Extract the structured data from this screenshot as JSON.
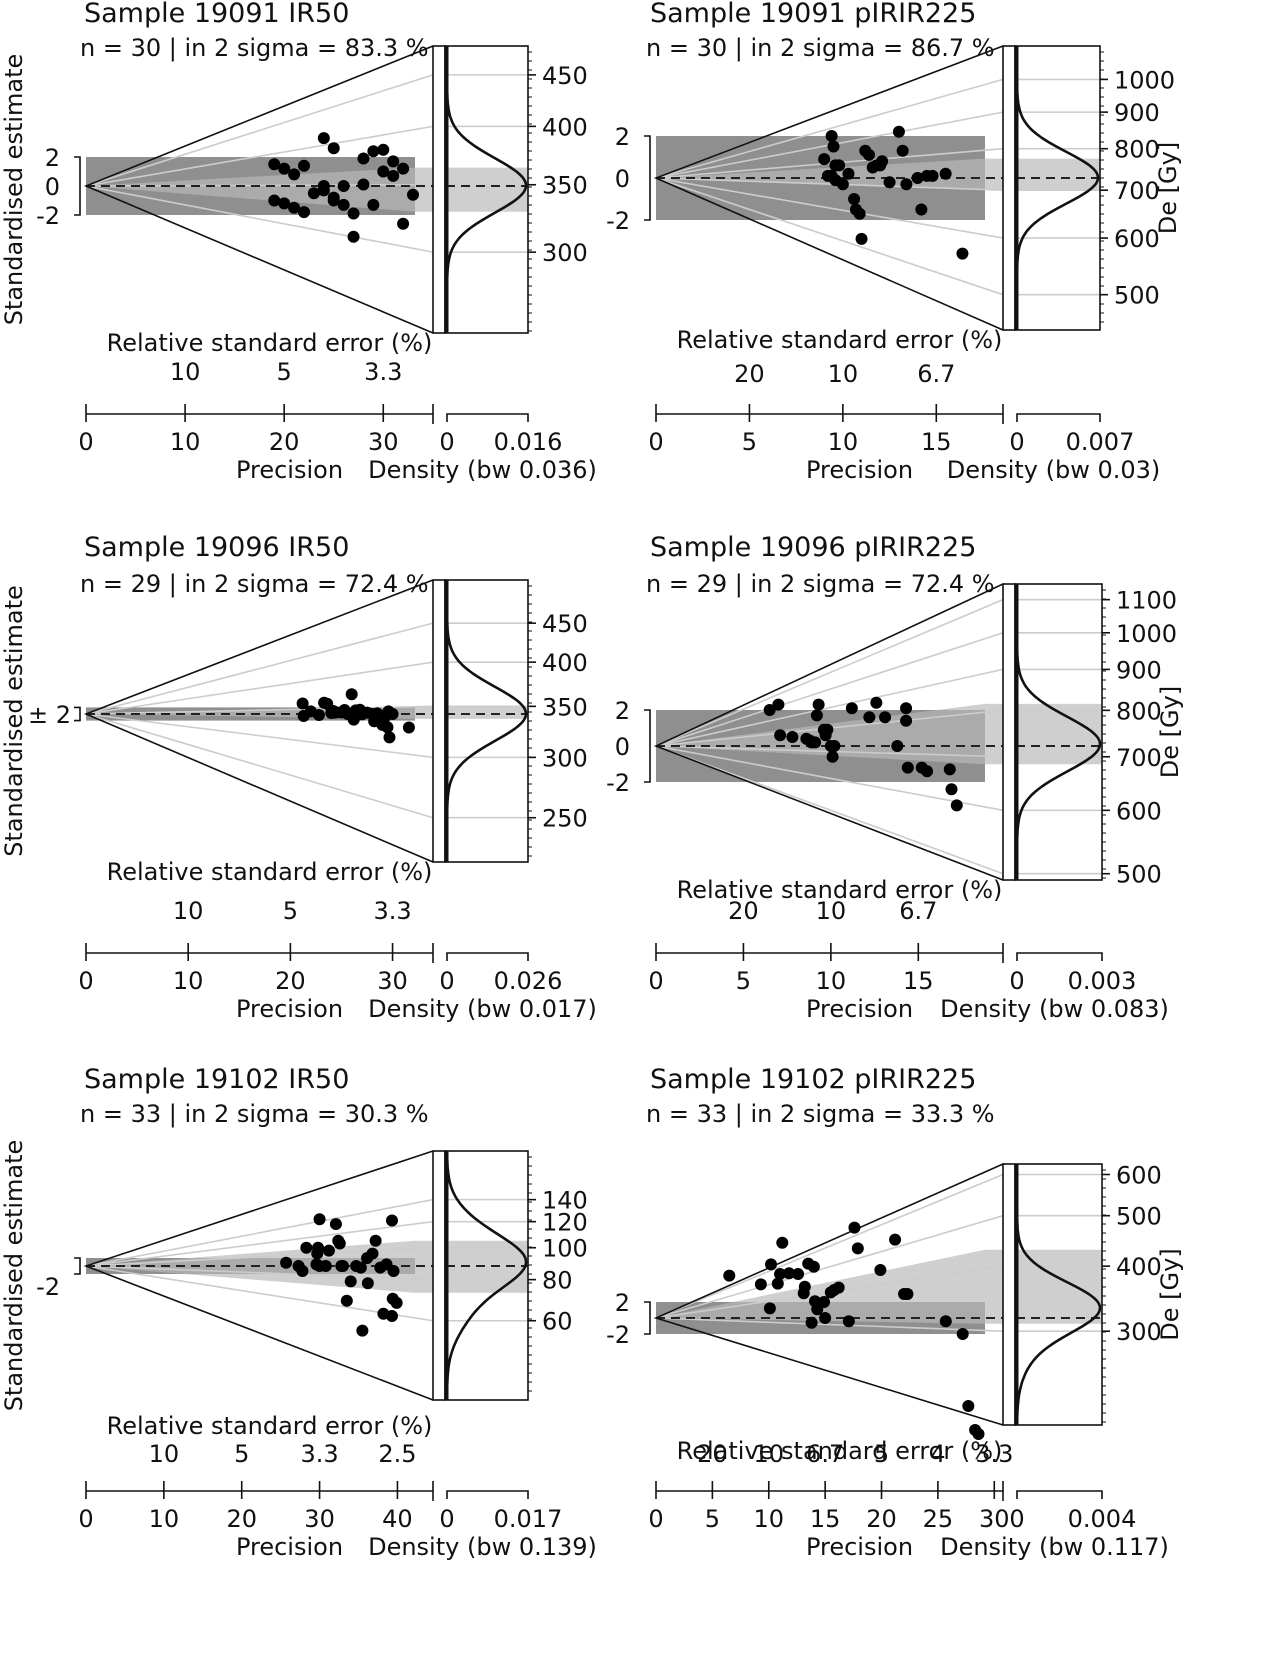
{
  "figure": {
    "description": "Six abanico plots of equivalent dose (De) distributions",
    "background": "#ffffff",
    "colors": {
      "polygon_dark": "#8f8f8f",
      "polygon_light": "#cfcfcf",
      "grid_lines": "#cccccc",
      "points": "#000000",
      "lines": "#111111"
    }
  },
  "chart_data": [
    {
      "type": "scatter",
      "subtype": "abanico",
      "title": "Sample 19091 IR50",
      "subtitle": "n = 30 | in 2 sigma = 83.3 %",
      "n": 30,
      "in_2_sigma_pct": 83.3,
      "ylabel": "Standardised estimate",
      "y_ticks": [
        "2",
        "0",
        "-2"
      ],
      "y_bracket_label": "",
      "rse_axis_label": "Relative standard error (%)",
      "rse_ticks": [
        {
          "label": "10",
          "precision": 10
        },
        {
          "label": "5",
          "precision": 20
        },
        {
          "label": "3.3",
          "precision": 30
        }
      ],
      "xlabel": "Precision",
      "xlim": [
        0,
        33
      ],
      "x_ticks": [
        0,
        10,
        20,
        30
      ],
      "density_label": "Density (bw 0.036)",
      "density_ticks": [
        "0",
        "0.016"
      ],
      "z_label": "",
      "z_ticks": [
        300,
        350,
        400,
        450
      ],
      "z_range": [
        255,
        470
      ],
      "central_value": 349,
      "polygon_band": [
        329,
        364
      ],
      "x": [
        19,
        20,
        21,
        22,
        23,
        24,
        25,
        26,
        19,
        20,
        21,
        22,
        24,
        25,
        26,
        27,
        28,
        29,
        30,
        31,
        32,
        33,
        24,
        25,
        27,
        28,
        29,
        30,
        31,
        32
      ],
      "y": [
        1.5,
        1.2,
        0.8,
        1.4,
        -0.5,
        0.0,
        -0.8,
        0.0,
        -1.0,
        -1.2,
        -1.5,
        -1.8,
        -0.3,
        -1.0,
        -1.3,
        -1.9,
        0.1,
        -1.3,
        2.5,
        1.7,
        1.2,
        -0.6,
        3.3,
        2.6,
        -3.5,
        1.9,
        2.4,
        1.0,
        0.7,
        -2.6
      ]
    },
    {
      "type": "scatter",
      "subtype": "abanico",
      "title": "Sample 19091 pIRIR225",
      "subtitle": "n = 30 | in 2 sigma = 86.7 %",
      "n": 30,
      "in_2_sigma_pct": 86.7,
      "ylabel": "",
      "y_ticks": [
        "2",
        "0",
        "-2"
      ],
      "y_bracket_label": "",
      "rse_axis_label": "Relative standard error (%)",
      "rse_ticks": [
        {
          "label": "20",
          "precision": 5
        },
        {
          "label": "10",
          "precision": 10
        },
        {
          "label": "6.7",
          "precision": 15
        }
      ],
      "xlabel": "Precision",
      "xlim": [
        0,
        17.5
      ],
      "x_ticks": [
        0,
        5,
        10,
        15
      ],
      "density_label": "Density (bw 0.03)",
      "density_ticks": [
        "0",
        "0.007"
      ],
      "z_label": "De [Gy]",
      "z_ticks": [
        500,
        600,
        700,
        800,
        900,
        1000
      ],
      "z_range": [
        480,
        1060
      ],
      "central_value": 728,
      "polygon_band": [
        700,
        775
      ],
      "x": [
        9.0,
        9.2,
        9.4,
        9.4,
        9.5,
        9.6,
        9.6,
        9.8,
        10.0,
        10.3,
        10.6,
        10.7,
        10.9,
        11.0,
        11.2,
        11.4,
        11.6,
        11.8,
        12.0,
        12.1,
        12.5,
        13.0,
        13.2,
        13.4,
        14.0,
        14.2,
        14.5,
        14.8,
        15.5,
        16.4
      ],
      "y": [
        0.9,
        0.1,
        0.1,
        2.0,
        1.5,
        0.6,
        -0.1,
        0.6,
        -0.3,
        0.2,
        -1.0,
        -1.5,
        -1.7,
        -2.9,
        1.3,
        1.1,
        0.5,
        0.6,
        0.6,
        0.8,
        -0.2,
        2.2,
        1.3,
        -0.3,
        0.0,
        -1.5,
        0.1,
        0.1,
        0.2,
        -3.6
      ]
    },
    {
      "type": "scatter",
      "subtype": "abanico",
      "title": "Sample 19096 IR50",
      "subtitle": "n = 29 | in 2 sigma = 72.4 %",
      "n": 29,
      "in_2_sigma_pct": 72.4,
      "ylabel": "Standardised estimate",
      "y_ticks": [],
      "y_bracket_label": "± 2",
      "rse_axis_label": "Relative standard error (%)",
      "rse_ticks": [
        {
          "label": "10",
          "precision": 10
        },
        {
          "label": "5",
          "precision": 20
        },
        {
          "label": "3.3",
          "precision": 30
        }
      ],
      "xlabel": "Precision",
      "xlim": [
        0,
        32
      ],
      "x_ticks": [
        0,
        10,
        20,
        30
      ],
      "density_label": "Density (bw 0.017)",
      "density_ticks": [
        "0",
        "0.026"
      ],
      "z_label": "",
      "z_ticks": [
        250,
        300,
        350,
        400,
        450
      ],
      "z_range": [
        230,
        480
      ],
      "central_value": 342,
      "polygon_band": [
        337,
        350
      ],
      "x": [
        21.2,
        21.3,
        22.0,
        22.8,
        23.3,
        23.6,
        24.0,
        24.2,
        24.3,
        24.5,
        25.0,
        25.3,
        25.6,
        26.2,
        26.4,
        26.8,
        27.0,
        27.5,
        28.0,
        28.2,
        28.5,
        29.0,
        29.5,
        29.6,
        30.0,
        29.2,
        31.6,
        26.0,
        29.7
      ],
      "y": [
        3.2,
        -0.6,
        0.8,
        -0.3,
        3.4,
        3.1,
        0.3,
        0.9,
        0.4,
        0.5,
        0.5,
        1.2,
        0.0,
        -1.7,
        1.1,
        1.3,
        -0.1,
        0.4,
        0.0,
        -2.2,
        0.2,
        -3.3,
        -4.0,
        0.8,
        0.0,
        -1.2,
        -4.1,
        6.0,
        -7.1
      ]
    },
    {
      "type": "scatter",
      "subtype": "abanico",
      "title": "Sample 19096 pIRIR225",
      "subtitle": "n = 29 | in 2 sigma = 72.4 %",
      "n": 29,
      "in_2_sigma_pct": 72.4,
      "ylabel": "",
      "y_ticks": [
        "2",
        "0",
        "-2"
      ],
      "y_bracket_label": "",
      "rse_axis_label": "Relative standard error (%)",
      "rse_ticks": [
        {
          "label": "20",
          "precision": 5
        },
        {
          "label": "10",
          "precision": 10
        },
        {
          "label": "6.7",
          "precision": 15
        }
      ],
      "xlabel": "Precision",
      "xlim": [
        0,
        18.7
      ],
      "x_ticks": [
        0,
        5,
        10,
        15
      ],
      "density_label": "Density (bw 0.083)",
      "density_ticks": [
        "0",
        "0.003"
      ],
      "z_label": "De [Gy]",
      "z_ticks": [
        500,
        600,
        700,
        800,
        900,
        1000,
        1100
      ],
      "z_range": [
        500,
        1140
      ],
      "central_value": 722,
      "polygon_band": [
        685,
        815
      ],
      "x": [
        6.5,
        7.0,
        7.1,
        7.8,
        8.6,
        8.8,
        8.9,
        9.1,
        9.2,
        9.3,
        9.6,
        9.7,
        9.8,
        10.0,
        10.1,
        10.2,
        11.2,
        12.2,
        12.6,
        13.1,
        13.8,
        14.3,
        14.3,
        14.4,
        15.2,
        15.5,
        16.8,
        16.9,
        17.2
      ],
      "y": [
        2.0,
        2.3,
        0.6,
        0.5,
        0.4,
        0.3,
        0.2,
        0.2,
        1.7,
        2.3,
        0.9,
        0.6,
        0.9,
        0.0,
        -0.6,
        0.0,
        2.1,
        1.6,
        2.4,
        1.6,
        0.0,
        2.1,
        1.4,
        -1.2,
        -1.2,
        -1.4,
        -1.3,
        -2.4,
        -3.3
      ]
    },
    {
      "type": "scatter",
      "subtype": "abanico",
      "title": "Sample 19102 IR50",
      "subtitle": "n = 33 | in 2 sigma = 30.3 %",
      "n": 33,
      "in_2_sigma_pct": 30.3,
      "ylabel": "Standardised estimate",
      "y_ticks": [
        "-2"
      ],
      "y_bracket_label": "",
      "rse_axis_label": "Relative standard error (%)",
      "rse_ticks": [
        {
          "label": "10",
          "precision": 10
        },
        {
          "label": "5",
          "precision": 20
        },
        {
          "label": "3.3",
          "precision": 30
        },
        {
          "label": "2.5",
          "precision": 40
        }
      ],
      "xlabel": "Precision",
      "xlim": [
        0,
        42
      ],
      "x_ticks": [
        0,
        10,
        20,
        30,
        40
      ],
      "density_label": "Density (bw 0.139)",
      "density_ticks": [
        "0",
        "0.017"
      ],
      "z_label": "",
      "z_ticks": [
        60,
        80,
        100,
        120,
        140
      ],
      "z_range": [
        40,
        152
      ],
      "central_value": 88,
      "polygon_band": [
        73,
        105
      ],
      "x": [
        25.7,
        27.3,
        27.8,
        28.3,
        29.6,
        29.7,
        29.8,
        30.0,
        30.0,
        30.8,
        31.2,
        32.1,
        32.4,
        32.6,
        32.8,
        33.0,
        33.5,
        34.0,
        34.7,
        35.3,
        35.5,
        36.1,
        36.2,
        36.8,
        37.2,
        37.8,
        38.2,
        38.6,
        39.3,
        39.5,
        39.3,
        39.9,
        39.4
      ],
      "y": [
        1.5,
        0.8,
        -0.5,
        5.5,
        1.2,
        3.8,
        5.5,
        0.5,
        9.0,
        0.5,
        4.6,
        9.0,
        7.4,
        6.3,
        1.4,
        0.0,
        -7.0,
        -3.5,
        1.6,
        0.0,
        -9.0,
        2.9,
        -3.2,
        4.2,
        5.8,
        0.8,
        -5.5,
        1.7,
        9.8,
        -1.3,
        -9.3,
        -7.2,
        -8.0
      ],
      "z_values": [
        90,
        88,
        85,
        100,
        89,
        96,
        100,
        88,
        122,
        88,
        98,
        118,
        105,
        103,
        88,
        88,
        69,
        79,
        88,
        87,
        56,
        93,
        78,
        96,
        105,
        87,
        63,
        89,
        121,
        85,
        62,
        68,
        70
      ]
    },
    {
      "type": "scatter",
      "subtype": "abanico",
      "title": "Sample 19102 pIRIR225",
      "subtitle": "n = 33 | in 2 sigma = 33.3 %",
      "n": 33,
      "in_2_sigma_pct": 33.3,
      "ylabel": "",
      "y_ticks": [
        "2",
        "-2"
      ],
      "y_bracket_label": "",
      "rse_axis_label": "Relative standard error (%)",
      "rse_ticks": [
        {
          "label": "20",
          "precision": 5
        },
        {
          "label": "10",
          "precision": 10
        },
        {
          "label": "6.7",
          "precision": 15
        },
        {
          "label": "5",
          "precision": 20
        },
        {
          "label": "4",
          "precision": 25
        },
        {
          "label": "3.3",
          "precision": 30
        }
      ],
      "xlabel": "Precision",
      "xlim": [
        0,
        29
      ],
      "x_ticks": [
        0,
        5,
        10,
        15,
        20,
        25,
        30
      ],
      "density_label": "Density (bw 0.117)",
      "density_ticks": [
        "0",
        "0.004"
      ],
      "z_label": "De [Gy]",
      "z_ticks": [
        300,
        400,
        500,
        600
      ],
      "z_range": [
        210,
        620
      ],
      "central_value": 318,
      "polygon_band": [
        310,
        430
      ],
      "x": [
        6.5,
        9.3,
        10.1,
        10.2,
        10.8,
        11.0,
        11.2,
        11.8,
        12.6,
        13.1,
        13.2,
        13.5,
        13.8,
        14.0,
        14.1,
        14.3,
        14.9,
        15.0,
        15.5,
        15.8,
        16.2,
        17.1,
        17.6,
        17.9,
        19.9,
        21.2,
        22.0,
        22.3,
        25.7,
        27.2,
        27.7,
        28.3,
        28.6
      ],
      "y": [
        5.3,
        4.2,
        1.2,
        6.7,
        4.3,
        5.5,
        9.4,
        5.6,
        5.5,
        3.1,
        3.9,
        6.8,
        -0.6,
        6.4,
        2.1,
        1.1,
        2.0,
        0.0,
        3.2,
        3.5,
        3.8,
        -0.4,
        11.3,
        8.7,
        6.0,
        9.8,
        3.0,
        3.0,
        -0.4,
        -2.0,
        -11.0,
        -14.0,
        -14.5
      ]
    }
  ]
}
